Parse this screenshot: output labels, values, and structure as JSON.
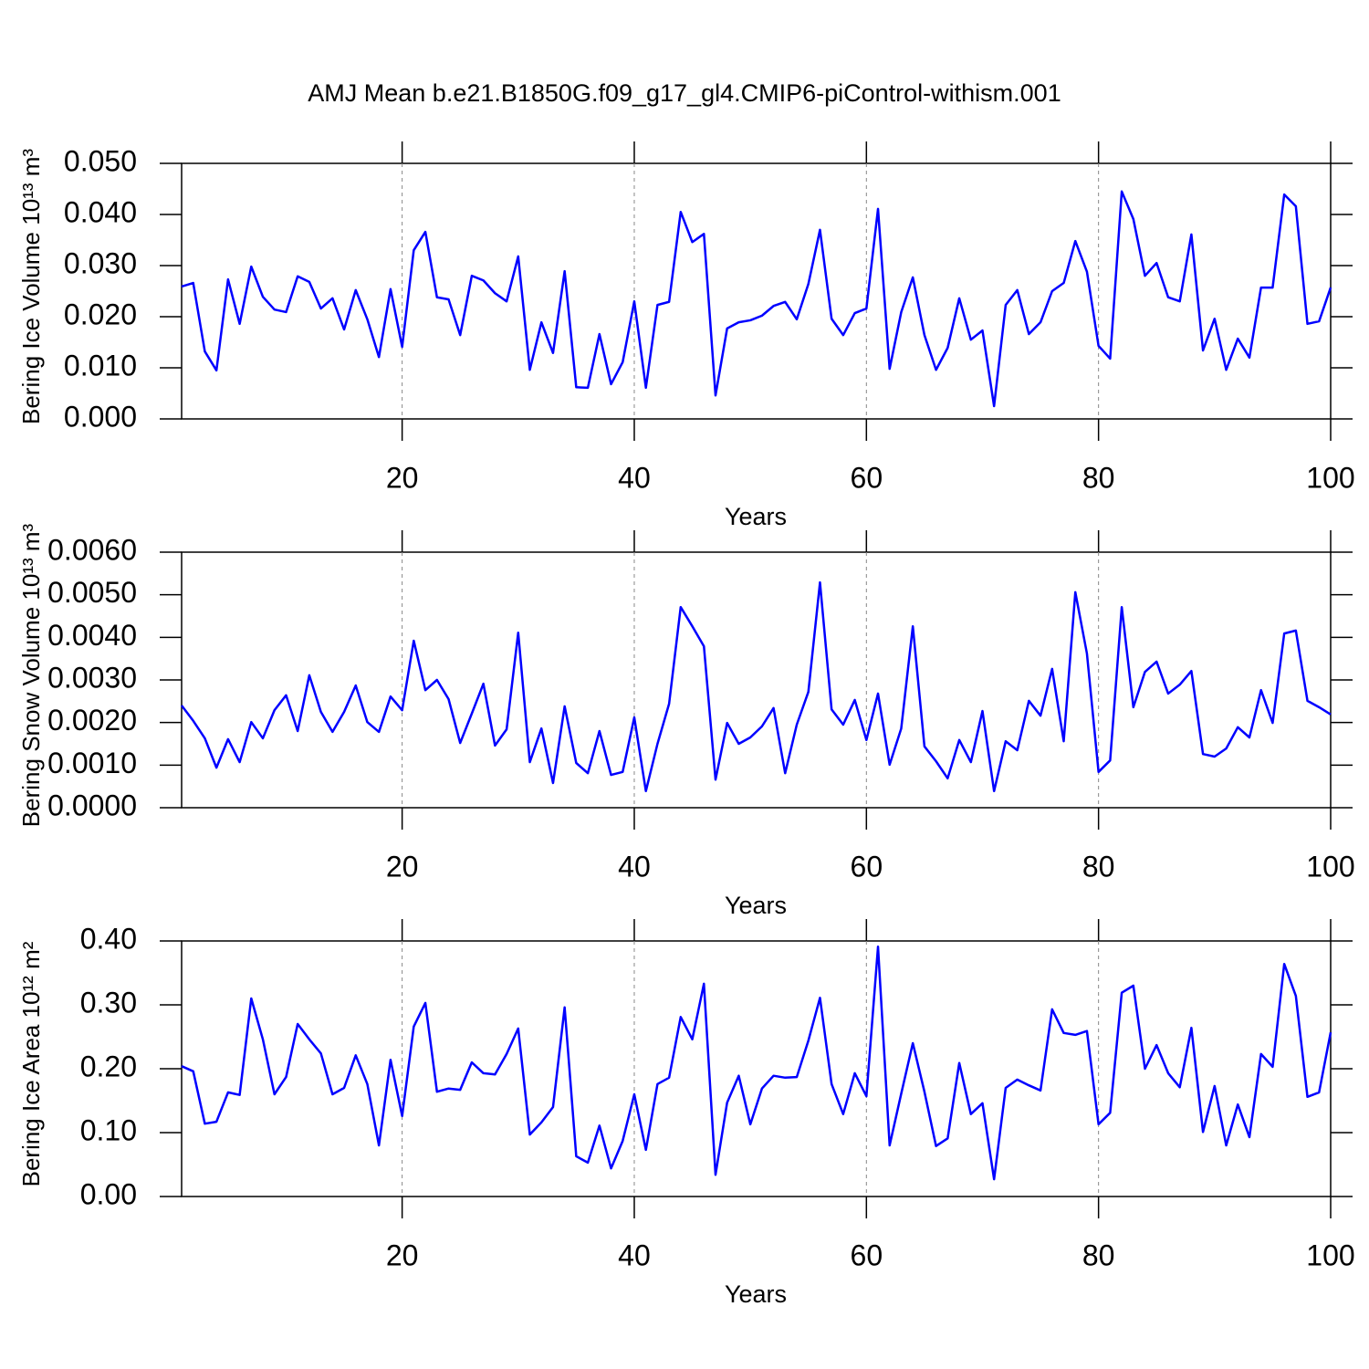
{
  "chart_data": [
    {
      "type": "line",
      "title": "AMJ Mean b.e21.B1850G.f09_g17_gl4.CMIP6-piControl-withism.001",
      "x_label": "Years",
      "y_label": "Bering Ice Volume 10¹³ m³",
      "color": "#0000ff",
      "xgrid": true,
      "xlim": [
        1,
        100
      ],
      "xticks": [
        20,
        40,
        60,
        80,
        100
      ],
      "ylim": [
        0,
        0.05
      ],
      "yticks": [
        {
          "value": 0,
          "label": "0.000"
        },
        {
          "value": 0.01,
          "label": "0.010"
        },
        {
          "value": 0.02,
          "label": "0.020"
        },
        {
          "value": 0.03,
          "label": "0.030"
        },
        {
          "value": 0.04,
          "label": "0.040"
        },
        {
          "value": 0.05,
          "label": "0.050"
        }
      ],
      "x": [
        1,
        2,
        3,
        4,
        5,
        6,
        7,
        8,
        9,
        10,
        11,
        12,
        13,
        14,
        15,
        16,
        17,
        18,
        19,
        20,
        21,
        22,
        23,
        24,
        25,
        26,
        27,
        28,
        29,
        30,
        31,
        32,
        33,
        34,
        35,
        36,
        37,
        38,
        39,
        40,
        41,
        42,
        43,
        44,
        45,
        46,
        47,
        48,
        49,
        50,
        51,
        52,
        53,
        54,
        55,
        56,
        57,
        58,
        59,
        60,
        61,
        62,
        63,
        64,
        65,
        66,
        67,
        68,
        69,
        70,
        71,
        72,
        73,
        74,
        75,
        76,
        77,
        78,
        79,
        80,
        81,
        82,
        83,
        84,
        85,
        86,
        87,
        88,
        89,
        90,
        91,
        92,
        93,
        94,
        95,
        96,
        97,
        98,
        99,
        100
      ],
      "values": [
        0.0259,
        0.0266,
        0.0132,
        0.0095,
        0.0273,
        0.0186,
        0.0298,
        0.0239,
        0.0214,
        0.0209,
        0.0279,
        0.0268,
        0.0216,
        0.0236,
        0.0175,
        0.0252,
        0.0195,
        0.0121,
        0.0254,
        0.0141,
        0.033,
        0.0366,
        0.0238,
        0.0234,
        0.0164,
        0.028,
        0.0271,
        0.0246,
        0.023,
        0.0318,
        0.0096,
        0.0189,
        0.0129,
        0.0289,
        0.0062,
        0.0061,
        0.0166,
        0.0068,
        0.0111,
        0.023,
        0.0061,
        0.0223,
        0.0229,
        0.0405,
        0.0346,
        0.0362,
        0.0046,
        0.0177,
        0.0189,
        0.0193,
        0.0202,
        0.0221,
        0.0229,
        0.0195,
        0.0264,
        0.037,
        0.0196,
        0.0164,
        0.0207,
        0.0216,
        0.0411,
        0.0098,
        0.0209,
        0.0277,
        0.0164,
        0.0096,
        0.0139,
        0.0236,
        0.0155,
        0.0173,
        0.0025,
        0.0223,
        0.0252,
        0.0166,
        0.0189,
        0.025,
        0.0266,
        0.0348,
        0.0288,
        0.0143,
        0.0118,
        0.0445,
        0.0391,
        0.028,
        0.0305,
        0.0238,
        0.023,
        0.0361,
        0.0134,
        0.0196,
        0.0096,
        0.0157,
        0.012,
        0.0257,
        0.0257,
        0.0439,
        0.0416,
        0.0186,
        0.0191,
        0.0257
      ]
    },
    {
      "type": "line",
      "x_label": "Years",
      "y_label": "Bering Snow Volume 10¹³ m³",
      "color": "#0000ff",
      "xgrid": true,
      "xlim": [
        1,
        100
      ],
      "xticks": [
        20,
        40,
        60,
        80,
        100
      ],
      "ylim": [
        0,
        0.006
      ],
      "yticks": [
        {
          "value": 0,
          "label": "0.0000"
        },
        {
          "value": 0.001,
          "label": "0.0010"
        },
        {
          "value": 0.002,
          "label": "0.0020"
        },
        {
          "value": 0.003,
          "label": "0.0030"
        },
        {
          "value": 0.004,
          "label": "0.0040"
        },
        {
          "value": 0.005,
          "label": "0.0050"
        },
        {
          "value": 0.006,
          "label": "0.0060"
        }
      ],
      "x": [
        1,
        2,
        3,
        4,
        5,
        6,
        7,
        8,
        9,
        10,
        11,
        12,
        13,
        14,
        15,
        16,
        17,
        18,
        19,
        20,
        21,
        22,
        23,
        24,
        25,
        26,
        27,
        28,
        29,
        30,
        31,
        32,
        33,
        34,
        35,
        36,
        37,
        38,
        39,
        40,
        41,
        42,
        43,
        44,
        45,
        46,
        47,
        48,
        49,
        50,
        51,
        52,
        53,
        54,
        55,
        56,
        57,
        58,
        59,
        60,
        61,
        62,
        63,
        64,
        65,
        66,
        67,
        68,
        69,
        70,
        71,
        72,
        73,
        74,
        75,
        76,
        77,
        78,
        79,
        80,
        81,
        82,
        83,
        84,
        85,
        86,
        87,
        88,
        89,
        90,
        91,
        92,
        93,
        94,
        95,
        96,
        97,
        98,
        99,
        100
      ],
      "values": [
        0.0024,
        0.00204,
        0.00163,
        0.00094,
        0.00161,
        0.00107,
        0.00201,
        0.00163,
        0.00229,
        0.00264,
        0.0018,
        0.00311,
        0.00225,
        0.00178,
        0.00225,
        0.00287,
        0.00201,
        0.00178,
        0.00261,
        0.00229,
        0.00392,
        0.00276,
        0.003,
        0.00255,
        0.00152,
        0.00221,
        0.00291,
        0.00146,
        0.00184,
        0.00411,
        0.00107,
        0.00186,
        0.00058,
        0.00238,
        0.00105,
        0.00081,
        0.0018,
        0.00077,
        0.00084,
        0.00212,
        0.00039,
        0.0015,
        0.00244,
        0.00471,
        0.00426,
        0.00379,
        0.00066,
        0.00199,
        0.0015,
        0.00165,
        0.00191,
        0.00234,
        0.00081,
        0.00195,
        0.00272,
        0.00529,
        0.00231,
        0.00195,
        0.00253,
        0.00159,
        0.00268,
        0.00101,
        0.00186,
        0.00426,
        0.00144,
        0.00109,
        0.00069,
        0.00159,
        0.00107,
        0.00227,
        0.00039,
        0.00156,
        0.00135,
        0.00251,
        0.00216,
        0.00326,
        0.00156,
        0.00506,
        0.00362,
        0.00084,
        0.00111,
        0.00471,
        0.00236,
        0.00319,
        0.00343,
        0.00268,
        0.00289,
        0.00321,
        0.00126,
        0.0012,
        0.00139,
        0.00189,
        0.00165,
        0.00276,
        0.00199,
        0.00409,
        0.00416,
        0.00251,
        0.00236,
        0.00219
      ]
    },
    {
      "type": "line",
      "x_label": "Years",
      "y_label": "Bering Ice Area 10¹² m²",
      "color": "#0000ff",
      "xgrid": true,
      "xlim": [
        1,
        100
      ],
      "xticks": [
        20,
        40,
        60,
        80,
        100
      ],
      "ylim": [
        0,
        0.4
      ],
      "yticks": [
        {
          "value": 0,
          "label": "0.00"
        },
        {
          "value": 0.1,
          "label": "0.10"
        },
        {
          "value": 0.2,
          "label": "0.20"
        },
        {
          "value": 0.3,
          "label": "0.30"
        },
        {
          "value": 0.4,
          "label": "0.40"
        }
      ],
      "x": [
        1,
        2,
        3,
        4,
        5,
        6,
        7,
        8,
        9,
        10,
        11,
        12,
        13,
        14,
        15,
        16,
        17,
        18,
        19,
        20,
        21,
        22,
        23,
        24,
        25,
        26,
        27,
        28,
        29,
        30,
        31,
        32,
        33,
        34,
        35,
        36,
        37,
        38,
        39,
        40,
        41,
        42,
        43,
        44,
        45,
        46,
        47,
        48,
        49,
        50,
        51,
        52,
        53,
        54,
        55,
        56,
        57,
        58,
        59,
        60,
        61,
        62,
        63,
        64,
        65,
        66,
        67,
        68,
        69,
        70,
        71,
        72,
        73,
        74,
        75,
        76,
        77,
        78,
        79,
        80,
        81,
        82,
        83,
        84,
        85,
        86,
        87,
        88,
        89,
        90,
        91,
        92,
        93,
        94,
        95,
        96,
        97,
        98,
        99,
        100
      ],
      "values": [
        0.204,
        0.196,
        0.114,
        0.117,
        0.163,
        0.159,
        0.31,
        0.246,
        0.16,
        0.187,
        0.27,
        0.246,
        0.224,
        0.16,
        0.17,
        0.221,
        0.176,
        0.08,
        0.214,
        0.126,
        0.266,
        0.303,
        0.164,
        0.169,
        0.167,
        0.21,
        0.193,
        0.191,
        0.223,
        0.263,
        0.097,
        0.116,
        0.14,
        0.296,
        0.063,
        0.053,
        0.111,
        0.044,
        0.087,
        0.16,
        0.073,
        0.176,
        0.186,
        0.281,
        0.246,
        0.333,
        0.034,
        0.147,
        0.189,
        0.113,
        0.169,
        0.189,
        0.186,
        0.187,
        0.244,
        0.311,
        0.176,
        0.129,
        0.193,
        0.157,
        0.391,
        0.08,
        0.161,
        0.24,
        0.164,
        0.079,
        0.091,
        0.209,
        0.129,
        0.146,
        0.027,
        0.17,
        0.183,
        0.174,
        0.166,
        0.293,
        0.256,
        0.253,
        0.259,
        0.113,
        0.131,
        0.319,
        0.33,
        0.2,
        0.237,
        0.193,
        0.171,
        0.264,
        0.101,
        0.173,
        0.08,
        0.144,
        0.093,
        0.223,
        0.203,
        0.364,
        0.314,
        0.156,
        0.163,
        0.257
      ]
    }
  ]
}
